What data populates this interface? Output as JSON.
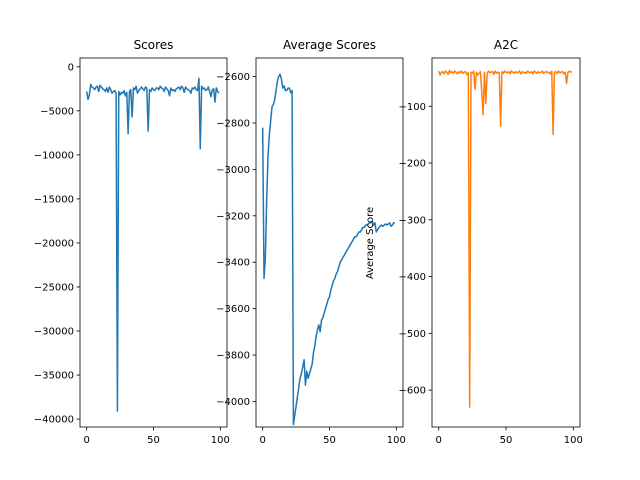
{
  "chart_data": [
    {
      "type": "line",
      "title": "Scores",
      "xlabel": "",
      "ylabel": "",
      "xlim": [
        -5,
        105
      ],
      "ylim": [
        -40900,
        1000
      ],
      "xticks": [
        0,
        50,
        100
      ],
      "yticks": [
        0,
        -5000,
        -10000,
        -15000,
        -20000,
        -25000,
        -30000,
        -35000,
        -40000
      ],
      "grid": false,
      "series": [
        {
          "color": "#1f77b4",
          "x": [
            0,
            1,
            2,
            3,
            4,
            5,
            6,
            7,
            8,
            9,
            10,
            11,
            12,
            13,
            14,
            15,
            16,
            17,
            18,
            19,
            20,
            21,
            22,
            23,
            24,
            25,
            26,
            27,
            28,
            29,
            30,
            31,
            32,
            33,
            34,
            35,
            36,
            37,
            38,
            39,
            40,
            41,
            42,
            43,
            44,
            45,
            46,
            47,
            48,
            49,
            50,
            51,
            52,
            53,
            54,
            55,
            56,
            57,
            58,
            59,
            60,
            61,
            62,
            63,
            64,
            65,
            66,
            67,
            68,
            69,
            70,
            71,
            72,
            73,
            74,
            75,
            76,
            77,
            78,
            79,
            80,
            81,
            82,
            83,
            84,
            85,
            86,
            87,
            88,
            89,
            90,
            91,
            92,
            93,
            94,
            95,
            96,
            97,
            98,
            99
          ],
          "y": [
            -2800,
            -3700,
            -3200,
            -2000,
            -2300,
            -2400,
            -2600,
            -2300,
            -2200,
            -2800,
            -2100,
            -2300,
            -2500,
            -2600,
            -2800,
            -2400,
            -2900,
            -2300,
            -2600,
            -3000,
            -2800,
            -2700,
            -3000,
            -39100,
            -2800,
            -3200,
            -2900,
            -3000,
            -2700,
            -3300,
            -2900,
            -7600,
            -2800,
            -2600,
            -5700,
            -2400,
            -2600,
            -2200,
            -3000,
            -2700,
            -2500,
            -2300,
            -2500,
            -2700,
            -2300,
            -2400,
            -7300,
            -2600,
            -2800,
            -2400,
            -2600,
            -2700,
            -2400,
            -2400,
            -2600,
            -2200,
            -2400,
            -2500,
            -2800,
            -2300,
            -2500,
            -2700,
            -3300,
            -2400,
            -2700,
            -2600,
            -2800,
            -2500,
            -2400,
            -2300,
            -2600,
            -2200,
            -2400,
            -2900,
            -2300,
            -2500,
            -2600,
            -2700,
            -3000,
            -2400,
            -2500,
            -2300,
            -2600,
            -2700,
            -1300,
            -9300,
            -2200,
            -2500,
            -2400,
            -2700,
            -2600,
            -2300,
            -2800,
            -3400,
            -2600,
            -2500,
            -4000,
            -2400,
            -2800,
            -3000
          ],
          "yValuesApprox": true
        }
      ]
    },
    {
      "type": "line",
      "title": "Average Scores",
      "xlabel": "",
      "ylabel": "Average Score",
      "xlim": [
        -5,
        105
      ],
      "ylim": [
        -4110,
        -2520
      ],
      "xticks": [
        0,
        50,
        100
      ],
      "yticks": [
        -2600,
        -2800,
        -3000,
        -3200,
        -3400,
        -3600,
        -3800,
        -4000
      ],
      "grid": false,
      "series": [
        {
          "color": "#1f77b4",
          "x": [
            0,
            1,
            2,
            3,
            4,
            5,
            6,
            7,
            8,
            9,
            10,
            11,
            12,
            13,
            14,
            15,
            16,
            17,
            18,
            19,
            20,
            21,
            22,
            23,
            24,
            25,
            26,
            27,
            28,
            29,
            30,
            31,
            32,
            33,
            34,
            35,
            36,
            37,
            38,
            39,
            40,
            41,
            42,
            43,
            44,
            45,
            46,
            47,
            48,
            49,
            50,
            51,
            52,
            53,
            54,
            55,
            56,
            57,
            58,
            59,
            60,
            61,
            62,
            63,
            64,
            65,
            66,
            67,
            68,
            69,
            70,
            71,
            72,
            73,
            74,
            75,
            76,
            77,
            78,
            79,
            80,
            81,
            82,
            83,
            84,
            85,
            86,
            87,
            88,
            89,
            90,
            91,
            92,
            93,
            94,
            95,
            96,
            97,
            98,
            99
          ],
          "y": [
            -2820,
            -3470,
            -3380,
            -3130,
            -2940,
            -2850,
            -2790,
            -2730,
            -2720,
            -2700,
            -2660,
            -2620,
            -2600,
            -2590,
            -2610,
            -2650,
            -2640,
            -2660,
            -2660,
            -2650,
            -2650,
            -2670,
            -2660,
            -4100,
            -4060,
            -4020,
            -3980,
            -3940,
            -3900,
            -3880,
            -3850,
            -3820,
            -3930,
            -3870,
            -3900,
            -3880,
            -3860,
            -3840,
            -3790,
            -3760,
            -3720,
            -3690,
            -3670,
            -3700,
            -3650,
            -3640,
            -3620,
            -3600,
            -3580,
            -3560,
            -3550,
            -3520,
            -3500,
            -3480,
            -3470,
            -3450,
            -3440,
            -3420,
            -3400,
            -3390,
            -3380,
            -3370,
            -3360,
            -3350,
            -3340,
            -3330,
            -3320,
            -3310,
            -3300,
            -3290,
            -3290,
            -3280,
            -3270,
            -3270,
            -3260,
            -3250,
            -3250,
            -3240,
            -3240,
            -3235,
            -3230,
            -3230,
            -3225,
            -3240,
            -3230,
            -3270,
            -3260,
            -3250,
            -3245,
            -3240,
            -3245,
            -3240,
            -3235,
            -3240,
            -3235,
            -3230,
            -3245,
            -3240,
            -3230,
            -3230
          ],
          "yValuesApprox": true
        }
      ]
    },
    {
      "type": "line",
      "title": "A2C",
      "xlabel": "",
      "ylabel": "",
      "xlim": [
        -5,
        105
      ],
      "ylim": [
        -665,
        -15
      ],
      "xticks": [
        0,
        50,
        100
      ],
      "yticks": [
        -100,
        -200,
        -300,
        -400,
        -500,
        -600
      ],
      "grid": false,
      "series": [
        {
          "color": "#ff7f0e",
          "x": [
            0,
            1,
            2,
            3,
            4,
            5,
            6,
            7,
            8,
            9,
            10,
            11,
            12,
            13,
            14,
            15,
            16,
            17,
            18,
            19,
            20,
            21,
            22,
            23,
            24,
            25,
            26,
            27,
            28,
            29,
            30,
            31,
            32,
            33,
            34,
            35,
            36,
            37,
            38,
            39,
            40,
            41,
            42,
            43,
            44,
            45,
            46,
            47,
            48,
            49,
            50,
            51,
            52,
            53,
            54,
            55,
            56,
            57,
            58,
            59,
            60,
            61,
            62,
            63,
            64,
            65,
            66,
            67,
            68,
            69,
            70,
            71,
            72,
            73,
            74,
            75,
            76,
            77,
            78,
            79,
            80,
            81,
            82,
            83,
            84,
            85,
            86,
            87,
            88,
            89,
            90,
            91,
            92,
            93,
            94,
            95,
            96,
            97,
            98,
            99
          ],
          "y": [
            -38,
            -45,
            -40,
            -39,
            -43,
            -38,
            -40,
            -44,
            -37,
            -41,
            -39,
            -42,
            -38,
            -40,
            -43,
            -39,
            -41,
            -38,
            -42,
            -40,
            -39,
            -44,
            -41,
            -630,
            -40,
            -42,
            -38,
            -70,
            -40,
            -45,
            -42,
            -39,
            -75,
            -115,
            -40,
            -95,
            -42,
            -38,
            -41,
            -40,
            -39,
            -44,
            -38,
            -42,
            -40,
            -41,
            -135,
            -39,
            -42,
            -38,
            -40,
            -41,
            -39,
            -43,
            -38,
            -40,
            -42,
            -39,
            -41,
            -40,
            -38,
            -43,
            -39,
            -41,
            -40,
            -42,
            -38,
            -40,
            -41,
            -39,
            -43,
            -38,
            -40,
            -42,
            -39,
            -41,
            -40,
            -38,
            -42,
            -40,
            -39,
            -41,
            -40,
            -43,
            -38,
            -150,
            -40,
            -39,
            -42,
            -38,
            -41,
            -40,
            -39,
            -43,
            -40,
            -60,
            -41,
            -38,
            -40,
            -39
          ],
          "yValuesApprox": true
        }
      ]
    }
  ]
}
